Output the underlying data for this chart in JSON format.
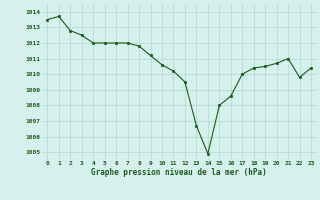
{
  "x": [
    0,
    1,
    2,
    3,
    4,
    5,
    6,
    7,
    8,
    9,
    10,
    11,
    12,
    13,
    14,
    15,
    16,
    17,
    18,
    19,
    20,
    21,
    22,
    23
  ],
  "y": [
    1013.5,
    1013.7,
    1012.8,
    1012.5,
    1012.0,
    1012.0,
    1012.0,
    1012.0,
    1011.8,
    1011.2,
    1010.6,
    1010.2,
    1009.5,
    1006.7,
    1004.9,
    1008.0,
    1008.6,
    1010.0,
    1010.4,
    1010.5,
    1010.7,
    1011.0,
    1009.8,
    1010.4
  ],
  "line_color": "#1a5c1a",
  "marker_color": "#1a5c1a",
  "bg_color": "#d6f0ee",
  "grid_color": "#b0d8cc",
  "xlabel": "Graphe pression niveau de la mer (hPa)",
  "xlabel_color": "#1a5c1a",
  "tick_color": "#1a5c1a",
  "ylim": [
    1004.5,
    1014.5
  ],
  "yticks": [
    1005,
    1006,
    1007,
    1008,
    1009,
    1010,
    1011,
    1012,
    1013,
    1014
  ],
  "xticks": [
    0,
    1,
    2,
    3,
    4,
    5,
    6,
    7,
    8,
    9,
    10,
    11,
    12,
    13,
    14,
    15,
    16,
    17,
    18,
    19,
    20,
    21,
    22,
    23
  ],
  "xtick_labels": [
    "0",
    "1",
    "2",
    "3",
    "4",
    "5",
    "6",
    "7",
    "8",
    "9",
    "10",
    "11",
    "12",
    "13",
    "14",
    "15",
    "16",
    "17",
    "18",
    "19",
    "20",
    "21",
    "22",
    "23"
  ]
}
